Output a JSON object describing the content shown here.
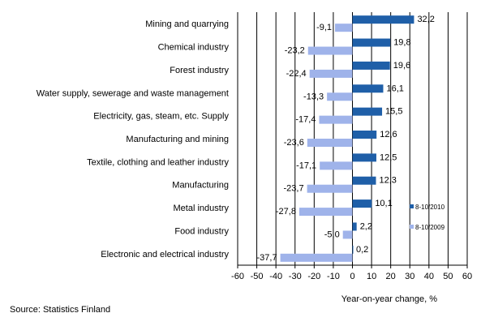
{
  "chart_data": {
    "type": "bar",
    "orientation": "horizontal",
    "categories": [
      "Mining and quarrying",
      "Chemical industry",
      "Forest industry",
      "Water supply, sewerage and waste management",
      "Electricity, gas, steam, etc. Supply",
      "Manufacturing and mining",
      "Textile, clothing and leather industry",
      "Manufacturing",
      "Metal industry",
      "Food industry",
      "Electronic and electrical industry"
    ],
    "series": [
      {
        "name": "8-10/2010",
        "color": "#1f5fa8",
        "values": [
          32.2,
          19.8,
          19.6,
          16.1,
          15.5,
          12.6,
          12.5,
          12.3,
          10.1,
          2.2,
          0.2
        ],
        "labels": [
          "32,2",
          "19,8",
          "19,6",
          "16,1",
          "15,5",
          "12,6",
          "12,5",
          "12,3",
          "10,1",
          "2,2",
          "0,2"
        ]
      },
      {
        "name": "8-10/2009",
        "color": "#9fb3ea",
        "values": [
          -9.1,
          -23.2,
          -22.4,
          -13.3,
          -17.4,
          -23.6,
          -17.1,
          -23.7,
          -27.8,
          -5.0,
          -37.7
        ],
        "labels": [
          "-9,1",
          "-23,2",
          "-22,4",
          "-13,3",
          "-17,4",
          "-23,6",
          "-17,1",
          "-23,7",
          "-27,8",
          "-5,0",
          "-37,7"
        ]
      }
    ],
    "xlim": [
      -60,
      60
    ],
    "xticks": [
      "-60",
      "-50",
      "-40",
      "-30",
      "-20",
      "-10",
      "0",
      "10",
      "20",
      "30",
      "40",
      "50",
      "60"
    ],
    "xlabel": "Year-on-year change, %",
    "grid": "vertical",
    "legend_position": "right"
  },
  "source": "Source: Statistics Finland"
}
